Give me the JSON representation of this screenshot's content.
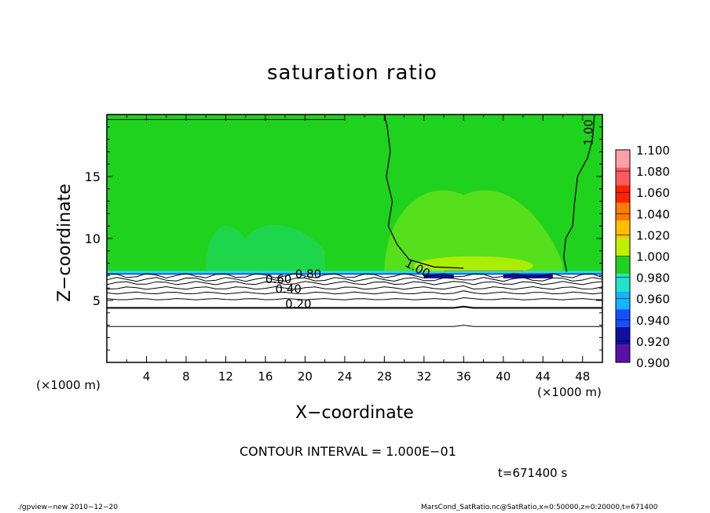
{
  "chart_data": {
    "type": "heatmap",
    "title": "saturation ratio",
    "xlabel": "X−coordinate",
    "ylabel": "Z−coordinate",
    "x_unit_label": "(×1000 m)",
    "x_ticks": [
      4,
      8,
      12,
      16,
      20,
      24,
      28,
      32,
      36,
      40,
      44,
      48
    ],
    "y_ticks": [
      5,
      10,
      15
    ],
    "xlim": [
      0,
      50
    ],
    "ylim": [
      0,
      20
    ],
    "contour_labels": [
      {
        "text": "0.20",
        "x": 18,
        "z": 4.4
      },
      {
        "text": "0.40",
        "x": 17,
        "z": 5.6
      },
      {
        "text": "0.60",
        "x": 16,
        "z": 6.4
      },
      {
        "text": "0.80",
        "x": 19,
        "z": 6.8
      },
      {
        "text": "1.00",
        "x": 30,
        "z": 7.8
      },
      {
        "text": "1.00",
        "x": 49,
        "z": 17.5
      }
    ],
    "colorbar": {
      "levels": [
        "1.100",
        "1.080",
        "1.060",
        "1.040",
        "1.020",
        "1.000",
        "0.980",
        "0.960",
        "0.940",
        "0.920",
        "0.900"
      ],
      "colors": [
        "#ff9fa6",
        "#ff5a5f",
        "#ff2200",
        "#ff7a00",
        "#ffc000",
        "#c0f000",
        "#1ed21e",
        "#20e4c8",
        "#14b4ff",
        "#1450ff",
        "#1010a0",
        "#5a10a8"
      ]
    },
    "contour_interval_text": "CONTOUR INTERVAL = 1.000E−01",
    "time_text": "t=671400 s"
  },
  "footer": {
    "left": "./gpview−new   2010−12−20",
    "right": "MarsCond_SatRatio.nc@SatRatio,x=0:50000,z=0:20000,t=671400"
  }
}
